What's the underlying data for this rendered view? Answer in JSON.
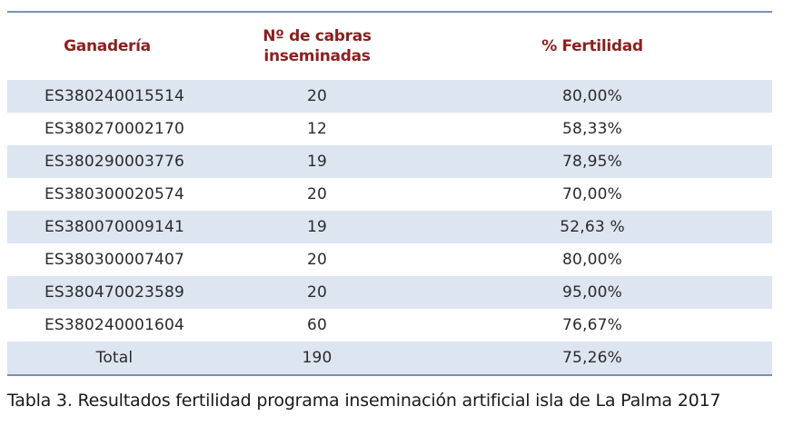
{
  "table": {
    "headers": {
      "farm": "Ganadería",
      "goats_line1": "Nº de cabras",
      "goats_line2": "inseminadas",
      "fertility": "% Fertilidad"
    },
    "rows": [
      {
        "farm": "ES380240015514",
        "goats": "20",
        "fertility": "80,00%"
      },
      {
        "farm": "ES380270002170",
        "goats": "12",
        "fertility": "58,33%"
      },
      {
        "farm": "ES380290003776",
        "goats": "19",
        "fertility": "78,95%"
      },
      {
        "farm": "ES380300020574",
        "goats": "20",
        "fertility": "70,00%"
      },
      {
        "farm": "ES380070009141",
        "goats": "19",
        "fertility": "52,63 %"
      },
      {
        "farm": "ES380300007407",
        "goats": "20",
        "fertility": "80,00%"
      },
      {
        "farm": "ES380470023589",
        "goats": "20",
        "fertility": "95,00%"
      },
      {
        "farm": "ES380240001604",
        "goats": "60",
        "fertility": "76,67%"
      },
      {
        "farm": "Total",
        "goats": "190",
        "fertility": "75,26%"
      }
    ],
    "colors": {
      "header_text": "#8b1f1f",
      "row_shade": "#dde5f1",
      "rule": "#7a8fb5"
    }
  },
  "caption": "Tabla 3. Resultados fertilidad programa inseminación artificial isla de La Palma 2017"
}
